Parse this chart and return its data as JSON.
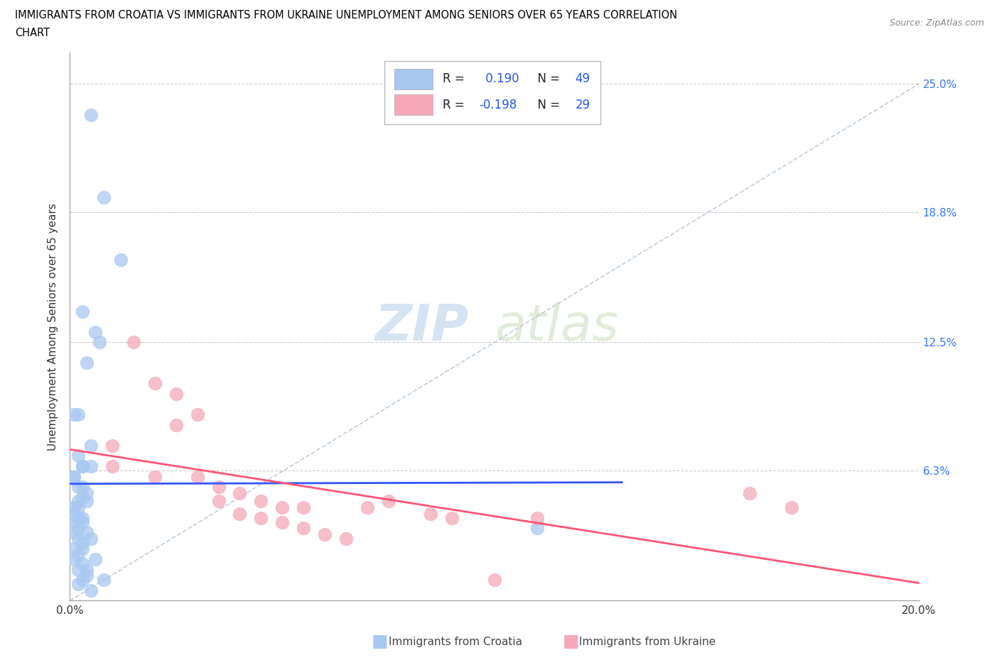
{
  "title_line1": "IMMIGRANTS FROM CROATIA VS IMMIGRANTS FROM UKRAINE UNEMPLOYMENT AMONG SENIORS OVER 65 YEARS CORRELATION",
  "title_line2": "CHART",
  "source": "Source: ZipAtlas.com",
  "ylabel": "Unemployment Among Seniors over 65 years",
  "xlim": [
    0.0,
    0.2
  ],
  "ylim": [
    0.0,
    0.265
  ],
  "croatia_color": "#a8c8f0",
  "ukraine_color": "#f4a8b8",
  "croatia_R": 0.19,
  "croatia_N": 49,
  "ukraine_R": -0.198,
  "ukraine_N": 29,
  "trendline_croatia_color": "#3355ff",
  "trendline_ukraine_color": "#ff5577",
  "diagonal_line_color": "#b8c8dc",
  "grid_color": "#cccccc",
  "background_color": "#ffffff",
  "watermark_zip": "ZIP",
  "watermark_atlas": "atlas",
  "croatia_scatter_x": [
    0.005,
    0.008,
    0.012,
    0.003,
    0.006,
    0.004,
    0.002,
    0.005,
    0.003,
    0.007,
    0.001,
    0.002,
    0.003,
    0.001,
    0.002,
    0.003,
    0.004,
    0.002,
    0.001,
    0.003,
    0.001,
    0.002,
    0.001,
    0.002,
    0.003,
    0.001,
    0.002,
    0.001,
    0.003,
    0.002,
    0.004,
    0.003,
    0.005,
    0.002,
    0.001,
    0.003,
    0.004,
    0.002,
    0.001,
    0.002,
    0.003,
    0.004,
    0.005,
    0.003,
    0.006,
    0.004,
    0.008,
    0.005,
    0.11
  ],
  "croatia_scatter_y": [
    0.235,
    0.195,
    0.165,
    0.14,
    0.13,
    0.115,
    0.09,
    0.075,
    0.065,
    0.125,
    0.09,
    0.07,
    0.065,
    0.06,
    0.055,
    0.05,
    0.048,
    0.045,
    0.042,
    0.04,
    0.038,
    0.035,
    0.033,
    0.03,
    0.028,
    0.025,
    0.022,
    0.02,
    0.018,
    0.015,
    0.012,
    0.01,
    0.065,
    0.008,
    0.06,
    0.055,
    0.052,
    0.048,
    0.045,
    0.04,
    0.038,
    0.033,
    0.03,
    0.025,
    0.02,
    0.015,
    0.01,
    0.005,
    0.035
  ],
  "ukraine_scatter_x": [
    0.01,
    0.015,
    0.02,
    0.025,
    0.03,
    0.035,
    0.04,
    0.045,
    0.05,
    0.055,
    0.06,
    0.065,
    0.07,
    0.075,
    0.03,
    0.035,
    0.04,
    0.085,
    0.09,
    0.1,
    0.11,
    0.16,
    0.17,
    0.02,
    0.025,
    0.045,
    0.05,
    0.055,
    0.01
  ],
  "ukraine_scatter_y": [
    0.075,
    0.125,
    0.06,
    0.085,
    0.09,
    0.048,
    0.042,
    0.04,
    0.038,
    0.035,
    0.032,
    0.03,
    0.045,
    0.048,
    0.06,
    0.055,
    0.052,
    0.042,
    0.04,
    0.01,
    0.04,
    0.052,
    0.045,
    0.105,
    0.1,
    0.048,
    0.045,
    0.045,
    0.065
  ]
}
